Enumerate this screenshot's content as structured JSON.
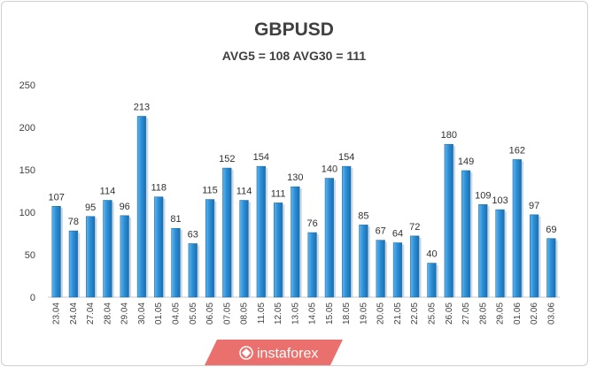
{
  "chart_data": {
    "type": "bar",
    "title": "GBPUSD",
    "subtitle": "AVG5 = 108 AVG30 = 111",
    "categories": [
      "23.04",
      "24.04",
      "27.04",
      "28.04",
      "29.04",
      "30.04",
      "01.05",
      "04.05",
      "05.05",
      "06.05",
      "07.05",
      "08.05",
      "11.05",
      "12.05",
      "13.05",
      "14.05",
      "15.05",
      "18.05",
      "19.05",
      "20.05",
      "21.05",
      "22.05",
      "25.05",
      "26.05",
      "27.05",
      "28.05",
      "29.05",
      "01.06",
      "02.06",
      "03.06"
    ],
    "values": [
      107,
      78,
      95,
      114,
      96,
      213,
      118,
      81,
      63,
      115,
      152,
      114,
      154,
      111,
      130,
      76,
      140,
      154,
      85,
      67,
      64,
      72,
      40,
      180,
      149,
      109,
      103,
      162,
      97,
      69
    ],
    "ylim": [
      0,
      250
    ],
    "yticks": [
      0,
      50,
      100,
      150,
      200,
      250
    ],
    "grid": false,
    "legend": "none",
    "bar_color": "#2e8fd6"
  },
  "watermark": {
    "text": "instaforex",
    "icon": "instaforex-logo-icon"
  }
}
